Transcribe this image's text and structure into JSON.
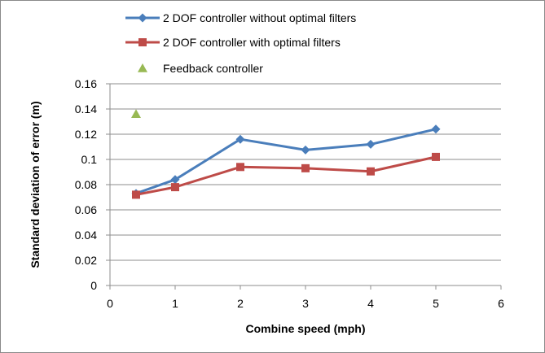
{
  "chart_data": {
    "type": "line",
    "title": "",
    "xlabel": "Combine speed (mph)",
    "ylabel": "Standard deviation of error (m)",
    "xlim": [
      0,
      6
    ],
    "ylim": [
      0,
      0.16
    ],
    "xticks": [
      0,
      1,
      2,
      3,
      4,
      5,
      6
    ],
    "yticks": [
      0,
      0.02,
      0.04,
      0.06,
      0.08,
      0.1,
      0.12,
      0.14,
      0.16
    ],
    "xtick_labels": [
      "0",
      "1",
      "2",
      "3",
      "4",
      "5",
      "6"
    ],
    "ytick_labels": [
      "0",
      "0.02",
      "0.04",
      "0.06",
      "0.08",
      "0.1",
      "0.12",
      "0.14",
      "0.16"
    ],
    "grid": "horizontal",
    "legend_position": "top",
    "series": [
      {
        "name": "2 DOF controller without optimal filters",
        "color": "#4a7ebb",
        "marker": "diamond",
        "x": [
          0.4,
          1,
          2,
          3,
          4,
          5
        ],
        "y": [
          0.073,
          0.084,
          0.116,
          0.1075,
          0.112,
          0.124
        ]
      },
      {
        "name": "2 DOF controller with optimal filters",
        "color": "#be4b48",
        "marker": "square",
        "x": [
          0.4,
          1,
          2,
          3,
          4,
          5
        ],
        "y": [
          0.072,
          0.078,
          0.094,
          0.093,
          0.0905,
          0.102
        ]
      },
      {
        "name": "Feedback controller",
        "color": "#98b954",
        "marker": "triangle",
        "x": [
          0.4
        ],
        "y": [
          0.136
        ]
      }
    ]
  }
}
